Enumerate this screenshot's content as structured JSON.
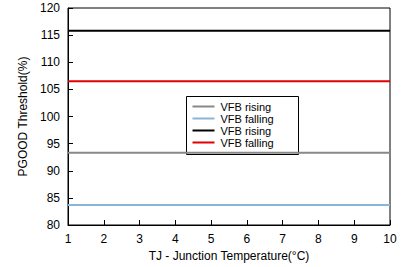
{
  "chart_data": {
    "type": "line",
    "x_label": "TJ - Junction Temperature(°C)",
    "y_label": "PGOOD Threshold(%)",
    "x": [
      1,
      10
    ],
    "series": [
      {
        "name": "VFB rising",
        "color": "#888888",
        "values": [
          93.3,
          93.3
        ]
      },
      {
        "name": "VFB falling",
        "color": "#8ab4d8",
        "values": [
          83.7,
          83.7
        ]
      },
      {
        "name": "VFB rising",
        "color": "#000000",
        "values": [
          115.8,
          115.8
        ]
      },
      {
        "name": "VFB falling",
        "color": "#e00000",
        "values": [
          106.5,
          106.5
        ]
      }
    ],
    "xlim": [
      1,
      10
    ],
    "xticks": [
      1,
      2,
      3,
      4,
      5,
      6,
      7,
      8,
      9,
      10
    ],
    "ylim": [
      80,
      120
    ],
    "yticks": [
      80,
      85,
      90,
      95,
      100,
      105,
      110,
      115,
      120
    ],
    "grid": false,
    "legend": "center"
  }
}
